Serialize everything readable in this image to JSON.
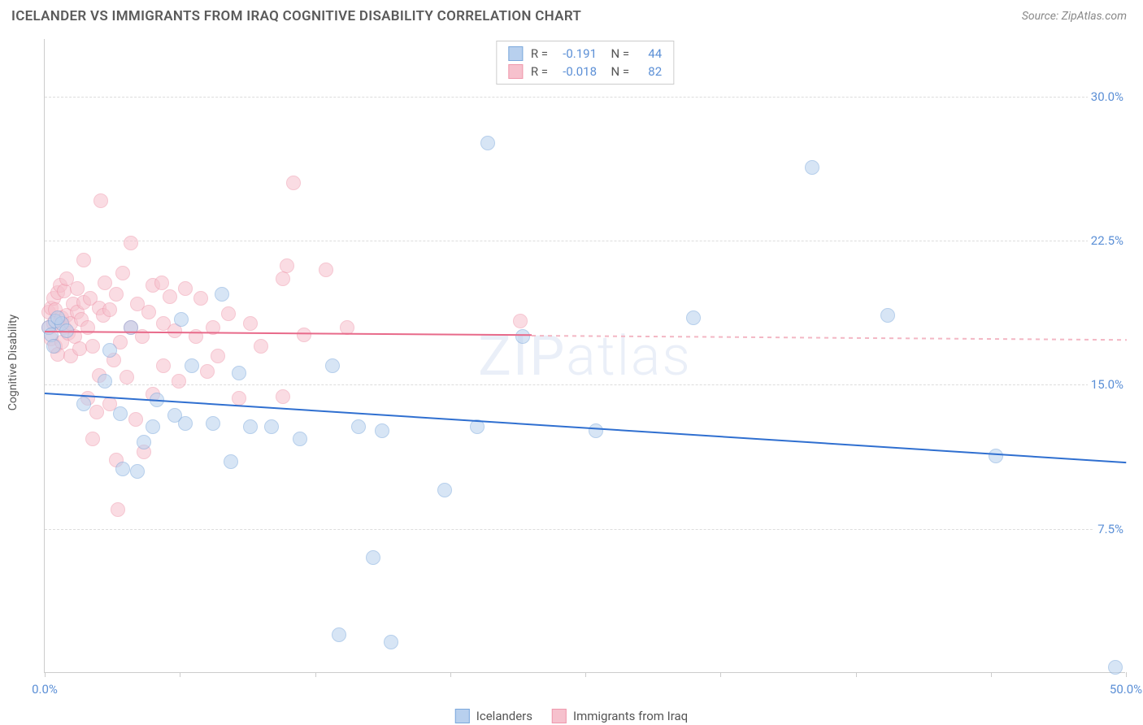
{
  "title": "ICELANDER VS IMMIGRANTS FROM IRAQ COGNITIVE DISABILITY CORRELATION CHART",
  "source": "Source: ZipAtlas.com",
  "watermark": "ZIPatlas",
  "ylabel": "Cognitive Disability",
  "chart": {
    "type": "scatter",
    "xlim": [
      0,
      50
    ],
    "ylim": [
      0,
      33
    ],
    "xtick_positions": [
      0,
      6.25,
      12.5,
      18.75,
      25,
      31.25,
      37.5,
      43.75,
      50
    ],
    "xtick_labels": {
      "0": "0.0%",
      "50": "50.0%"
    },
    "ytick_positions": [
      7.5,
      15.0,
      22.5,
      30.0
    ],
    "ytick_labels": [
      "7.5%",
      "15.0%",
      "22.5%",
      "30.0%"
    ],
    "background_color": "#ffffff",
    "grid_color": "#dddddd",
    "axis_color": "#cccccc",
    "label_color": "#5b8fd6",
    "marker_radius": 9,
    "series": [
      {
        "id": "icelanders",
        "label": "Icelanders",
        "fill": "#b8d0ee",
        "stroke": "#7ba8dc",
        "fill_opacity": 0.55,
        "trend_color": "#2f6fd0",
        "trend_y_at_x0": 14.6,
        "trend_y_at_x50": 11.0,
        "R": "-0.191",
        "N": "44",
        "points": [
          [
            0.2,
            18.0
          ],
          [
            0.3,
            17.6
          ],
          [
            0.5,
            18.3
          ],
          [
            0.4,
            17.0
          ],
          [
            0.8,
            18.2
          ],
          [
            0.6,
            18.5
          ],
          [
            1.0,
            17.8
          ],
          [
            1.8,
            14.0
          ],
          [
            2.8,
            15.2
          ],
          [
            3.0,
            16.8
          ],
          [
            3.6,
            10.6
          ],
          [
            3.5,
            13.5
          ],
          [
            4.0,
            18.0
          ],
          [
            4.3,
            10.5
          ],
          [
            4.6,
            12.0
          ],
          [
            5.0,
            12.8
          ],
          [
            5.2,
            14.2
          ],
          [
            6.0,
            13.4
          ],
          [
            6.3,
            18.4
          ],
          [
            6.5,
            13.0
          ],
          [
            6.8,
            16.0
          ],
          [
            8.2,
            19.7
          ],
          [
            8.6,
            11.0
          ],
          [
            9.0,
            15.6
          ],
          [
            9.5,
            12.8
          ],
          [
            10.5,
            12.8
          ],
          [
            11.8,
            12.2
          ],
          [
            13.3,
            16.0
          ],
          [
            13.6,
            2.0
          ],
          [
            14.5,
            12.8
          ],
          [
            15.2,
            6.0
          ],
          [
            15.6,
            12.6
          ],
          [
            16.0,
            1.6
          ],
          [
            18.5,
            9.5
          ],
          [
            20.0,
            12.8
          ],
          [
            20.5,
            27.6
          ],
          [
            22.1,
            17.5
          ],
          [
            25.5,
            12.6
          ],
          [
            30.0,
            18.5
          ],
          [
            35.5,
            26.3
          ],
          [
            39.0,
            18.6
          ],
          [
            44.0,
            11.3
          ],
          [
            49.5,
            0.3
          ],
          [
            7.8,
            13.0
          ]
        ]
      },
      {
        "id": "immigrants_iraq",
        "label": "Immigrants from Iraq",
        "fill": "#f6c1cd",
        "stroke": "#ef98ac",
        "fill_opacity": 0.55,
        "trend_color": "#e86a8a",
        "trend_dash_color": "#f3b7c4",
        "trend_y_at_x0": 17.8,
        "trend_y_at_x50": 17.4,
        "trend_solid_until_x": 22.5,
        "R": "-0.018",
        "N": "82",
        "points": [
          [
            0.2,
            18.8
          ],
          [
            0.2,
            18.0
          ],
          [
            0.3,
            19.0
          ],
          [
            0.3,
            17.4
          ],
          [
            0.4,
            19.5
          ],
          [
            0.4,
            18.2
          ],
          [
            0.5,
            18.9
          ],
          [
            0.5,
            17.0
          ],
          [
            0.6,
            19.8
          ],
          [
            0.6,
            16.6
          ],
          [
            0.7,
            18.3
          ],
          [
            0.7,
            20.2
          ],
          [
            0.8,
            18.5
          ],
          [
            0.8,
            17.2
          ],
          [
            0.9,
            19.9
          ],
          [
            0.9,
            18.0
          ],
          [
            1.0,
            20.5
          ],
          [
            1.0,
            18.6
          ],
          [
            1.1,
            17.7
          ],
          [
            1.2,
            18.2
          ],
          [
            1.2,
            16.5
          ],
          [
            1.3,
            19.2
          ],
          [
            1.4,
            17.5
          ],
          [
            1.5,
            18.8
          ],
          [
            1.5,
            20.0
          ],
          [
            1.6,
            16.9
          ],
          [
            1.7,
            18.4
          ],
          [
            1.8,
            21.5
          ],
          [
            1.8,
            19.3
          ],
          [
            2.0,
            18.0
          ],
          [
            2.0,
            14.3
          ],
          [
            2.1,
            19.5
          ],
          [
            2.2,
            12.2
          ],
          [
            2.2,
            17.0
          ],
          [
            2.4,
            13.6
          ],
          [
            2.5,
            19.0
          ],
          [
            2.5,
            15.5
          ],
          [
            2.6,
            24.6
          ],
          [
            2.7,
            18.6
          ],
          [
            2.8,
            20.3
          ],
          [
            3.0,
            18.9
          ],
          [
            3.0,
            14.0
          ],
          [
            3.2,
            16.3
          ],
          [
            3.3,
            19.7
          ],
          [
            3.3,
            11.1
          ],
          [
            3.4,
            8.5
          ],
          [
            3.5,
            17.2
          ],
          [
            3.6,
            20.8
          ],
          [
            3.8,
            15.4
          ],
          [
            4.0,
            22.4
          ],
          [
            4.0,
            18.0
          ],
          [
            4.2,
            13.2
          ],
          [
            4.3,
            19.2
          ],
          [
            4.5,
            17.5
          ],
          [
            4.6,
            11.5
          ],
          [
            4.8,
            18.8
          ],
          [
            5.0,
            14.5
          ],
          [
            5.0,
            20.2
          ],
          [
            5.4,
            20.3
          ],
          [
            5.5,
            16.0
          ],
          [
            5.5,
            18.2
          ],
          [
            5.8,
            19.6
          ],
          [
            6.0,
            17.8
          ],
          [
            6.2,
            15.2
          ],
          [
            6.5,
            20.0
          ],
          [
            7.0,
            17.5
          ],
          [
            7.2,
            19.5
          ],
          [
            7.5,
            15.7
          ],
          [
            7.8,
            18.0
          ],
          [
            8.0,
            16.5
          ],
          [
            8.5,
            18.7
          ],
          [
            9.0,
            14.3
          ],
          [
            9.5,
            18.2
          ],
          [
            10.0,
            17.0
          ],
          [
            11.0,
            20.5
          ],
          [
            11.2,
            21.2
          ],
          [
            12.0,
            17.6
          ],
          [
            11.0,
            14.4
          ],
          [
            11.5,
            25.5
          ],
          [
            13.0,
            21.0
          ],
          [
            14.0,
            18.0
          ],
          [
            22.0,
            18.3
          ]
        ]
      }
    ]
  },
  "legend": {
    "items": [
      {
        "label": "Icelanders",
        "fill": "#b8d0ee",
        "stroke": "#7ba8dc"
      },
      {
        "label": "Immigrants from Iraq",
        "fill": "#f6c1cd",
        "stroke": "#ef98ac"
      }
    ]
  }
}
